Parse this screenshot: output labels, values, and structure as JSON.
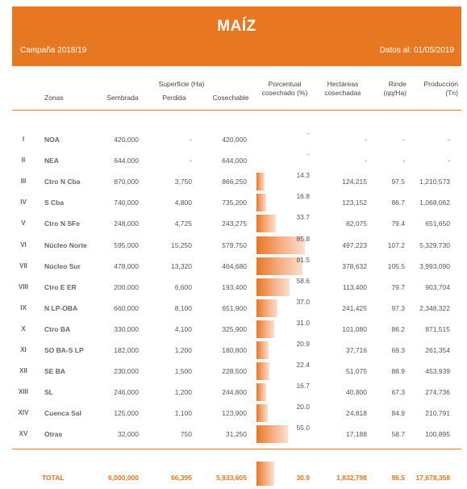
{
  "header": {
    "title": "MAÍZ",
    "campaign": "Campaña 2018/19",
    "date": "Datos al: 01/05/2019"
  },
  "columns": {
    "zonas": "Zonas",
    "superficie_group": "Superficie (Ha)",
    "sembrada": "Sembrada",
    "perdida": "Perdida",
    "cosechable": "Cosechable",
    "porcentual_1": "Porcentual",
    "porcentual_2": "cosechado (%)",
    "hectareas_1": "Hectáreas",
    "hectareas_2": "cosechadas",
    "rinde_1": "Rinde",
    "rinde_2": "(qq/Ha)",
    "produccion_1": "Producción",
    "produccion_2": "(Tn)"
  },
  "rows": [
    {
      "num": "I",
      "zona": "NOA",
      "sembrada": "420,000",
      "perdida": "-",
      "cosechable": "420,000",
      "pct": "-",
      "pct_value": 0,
      "hectareas": "-",
      "rinde": "-",
      "produccion": "-"
    },
    {
      "num": "II",
      "zona": "NEA",
      "sembrada": "644,000",
      "perdida": "-",
      "cosechable": "644,000",
      "pct": "-",
      "pct_value": 0,
      "hectareas": "-",
      "rinde": "-",
      "produccion": "-"
    },
    {
      "num": "III",
      "zona": "Ctro N Cba",
      "sembrada": "870,000",
      "perdida": "3,750",
      "cosechable": "866,250",
      "pct": "14.3",
      "pct_value": 14.3,
      "hectareas": "124,215",
      "rinde": "97.5",
      "produccion": "1,210,573"
    },
    {
      "num": "IV",
      "zona": "S Cba",
      "sembrada": "740,000",
      "perdida": "4,800",
      "cosechable": "735,200",
      "pct": "16.8",
      "pct_value": 16.8,
      "hectareas": "123,152",
      "rinde": "86.7",
      "produccion": "1,068,062"
    },
    {
      "num": "V",
      "zona": "Ctro N SFe",
      "sembrada": "248,000",
      "perdida": "4,725",
      "cosechable": "243,275",
      "pct": "33.7",
      "pct_value": 33.7,
      "hectareas": "82,075",
      "rinde": "79.4",
      "produccion": "651,650"
    },
    {
      "num": "VI",
      "zona": "Núcleo Norte",
      "sembrada": "595,000",
      "perdida": "15,250",
      "cosechable": "579,750",
      "pct": "85.8",
      "pct_value": 85.8,
      "hectareas": "497,223",
      "rinde": "107.2",
      "produccion": "5,329,730"
    },
    {
      "num": "VII",
      "zona": "Núcleo Sur",
      "sembrada": "478,000",
      "perdida": "13,320",
      "cosechable": "464,680",
      "pct": "81.5",
      "pct_value": 81.5,
      "hectareas": "378,632",
      "rinde": "105.5",
      "produccion": "3,993,090"
    },
    {
      "num": "VIII",
      "zona": "Ctro E ER",
      "sembrada": "200,000",
      "perdida": "6,600",
      "cosechable": "193,400",
      "pct": "58.6",
      "pct_value": 58.6,
      "hectareas": "113,400",
      "rinde": "79.7",
      "produccion": "903,704"
    },
    {
      "num": "IX",
      "zona": "N LP-OBA",
      "sembrada": "660,000",
      "perdida": "8,100",
      "cosechable": "651,900",
      "pct": "37.0",
      "pct_value": 37.0,
      "hectareas": "241,425",
      "rinde": "97.3",
      "produccion": "2,348,322"
    },
    {
      "num": "X",
      "zona": "Ctro BA",
      "sembrada": "330,000",
      "perdida": "4,100",
      "cosechable": "325,900",
      "pct": "31.0",
      "pct_value": 31.0,
      "hectareas": "101,080",
      "rinde": "86.2",
      "produccion": "871,515"
    },
    {
      "num": "XI",
      "zona": "SO BA-S LP",
      "sembrada": "182,000",
      "perdida": "1,200",
      "cosechable": "180,800",
      "pct": "20.9",
      "pct_value": 20.9,
      "hectareas": "37,716",
      "rinde": "69.3",
      "produccion": "261,354"
    },
    {
      "num": "XII",
      "zona": "SE BA",
      "sembrada": "230,000",
      "perdida": "1,500",
      "cosechable": "228,500",
      "pct": "22.4",
      "pct_value": 22.4,
      "hectareas": "51,075",
      "rinde": "88.9",
      "produccion": "453,939"
    },
    {
      "num": "XIII",
      "zona": "SL",
      "sembrada": "246,000",
      "perdida": "1,200",
      "cosechable": "244,800",
      "pct": "16.7",
      "pct_value": 16.7,
      "hectareas": "40,800",
      "rinde": "67.3",
      "produccion": "274,736"
    },
    {
      "num": "XIV",
      "zona": "Cuenca Sal",
      "sembrada": "125,000",
      "perdida": "1,100",
      "cosechable": "123,900",
      "pct": "20.0",
      "pct_value": 20.0,
      "hectareas": "24,818",
      "rinde": "84.9",
      "produccion": "210,791"
    },
    {
      "num": "XV",
      "zona": "Otras",
      "sembrada": "32,000",
      "perdida": "750",
      "cosechable": "31,250",
      "pct": "55.0",
      "pct_value": 55.0,
      "hectareas": "17,188",
      "rinde": "58.7",
      "produccion": "100,895"
    }
  ],
  "total": {
    "label": "TOTAL",
    "sembrada": "6,000,000",
    "perdida": "66,395",
    "cosechable": "5,933,605",
    "pct": "30.9",
    "pct_value": 30.9,
    "hectareas": "1,832,798",
    "rinde": "96.5",
    "produccion": "17,678,358"
  },
  "colors": {
    "accent": "#e87722"
  }
}
